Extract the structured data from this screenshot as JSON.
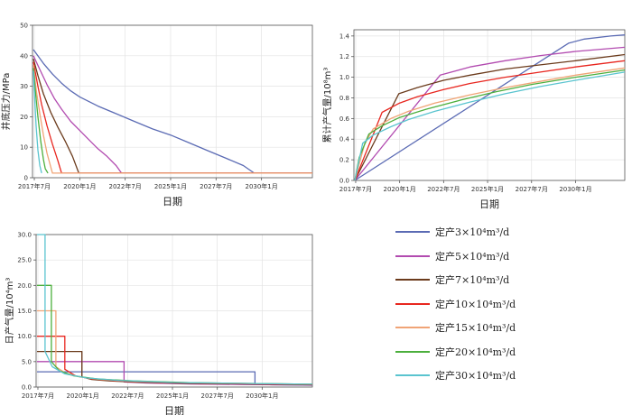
{
  "legend": [
    {
      "label": "定产3×10⁴m³/d",
      "color": "#5b6bb4"
    },
    {
      "label": "定产5×10⁴m³/d",
      "color": "#b24bb0"
    },
    {
      "label": "定产7×10⁴m³/d",
      "color": "#6b3b1c"
    },
    {
      "label": "定产10×10⁴m³/d",
      "color": "#e8261f"
    },
    {
      "label": "定产15×10⁴m³/d",
      "color": "#f0a476"
    },
    {
      "label": "定产20×10⁴m³/d",
      "color": "#4caf3d"
    },
    {
      "label": "定产30×10⁴m³/d",
      "color": "#5ac4cf"
    }
  ],
  "chart_data": [
    {
      "id": "pressure",
      "type": "line",
      "title": "",
      "ylabel": "井底压力/MPa",
      "xlabel": "日期",
      "xlim": [
        2017.4,
        2032.8
      ],
      "ylim": [
        0,
        50
      ],
      "yticks": [
        0,
        10,
        20,
        30,
        40,
        50
      ],
      "xticks": [
        {
          "v": 2017.5,
          "label": "2017年7月"
        },
        {
          "v": 2020.0,
          "label": "2020年1月"
        },
        {
          "v": 2022.5,
          "label": "2022年7月"
        },
        {
          "v": 2025.0,
          "label": "2025年1月"
        },
        {
          "v": 2027.5,
          "label": "2027年7月"
        },
        {
          "v": 2030.0,
          "label": "2030年1月"
        }
      ],
      "series": [
        {
          "name": "3",
          "color": "#5b6bb4",
          "x": [
            2017.45,
            2018.0,
            2018.5,
            2019.0,
            2019.5,
            2020.0,
            2021.0,
            2022.0,
            2023.0,
            2024.0,
            2025.0,
            2026.0,
            2027.0,
            2028.0,
            2029.0,
            2029.6,
            2032.8
          ],
          "y": [
            42,
            37.5,
            34,
            31,
            28.5,
            26.5,
            23.5,
            21,
            18.5,
            16,
            14,
            11.5,
            9,
            6.5,
            4,
            1.5,
            1.5
          ]
        },
        {
          "name": "5",
          "color": "#b24bb0",
          "x": [
            2017.45,
            2017.8,
            2018.2,
            2018.6,
            2019.0,
            2019.5,
            2020.0,
            2020.5,
            2021.0,
            2021.5,
            2022.0,
            2022.3,
            2032.8
          ],
          "y": [
            40,
            35.5,
            30.5,
            26,
            22.5,
            18.5,
            15.5,
            12.5,
            9.5,
            7,
            4,
            1.5,
            1.5
          ]
        },
        {
          "name": "7",
          "color": "#6b3b1c",
          "x": [
            2017.45,
            2017.7,
            2018.0,
            2018.4,
            2018.8,
            2019.2,
            2019.6,
            2019.95,
            2032.8
          ],
          "y": [
            39,
            33.5,
            27.5,
            21.5,
            16.5,
            12,
            7,
            1.5,
            1.5
          ]
        },
        {
          "name": "10",
          "color": "#e8261f",
          "x": [
            2017.45,
            2017.7,
            2017.9,
            2018.2,
            2018.5,
            2018.8,
            2019.0,
            2032.8
          ],
          "y": [
            38,
            30,
            24,
            17,
            11,
            5.5,
            1.5,
            1.5
          ]
        },
        {
          "name": "15",
          "color": "#f0a476",
          "x": [
            2017.45,
            2017.6,
            2017.8,
            2018.0,
            2018.2,
            2018.5,
            2032.8
          ],
          "y": [
            37,
            29,
            21,
            14,
            8,
            1.5,
            1.5
          ]
        },
        {
          "name": "20",
          "color": "#4caf3d",
          "x": [
            2017.45,
            2017.55,
            2017.7,
            2017.85,
            2018.0,
            2018.1,
            2018.25
          ],
          "y": [
            36,
            29,
            20,
            12,
            6,
            3,
            1.5
          ]
        },
        {
          "name": "30",
          "color": "#5ac4cf",
          "x": [
            2017.45,
            2017.52,
            2017.6,
            2017.7,
            2017.8,
            2017.9
          ],
          "y": [
            35,
            26,
            17,
            9,
            4,
            1.5
          ]
        }
      ]
    },
    {
      "id": "cumulative",
      "type": "line",
      "title": "",
      "ylabel": "累计产气量/10⁸m³",
      "xlabel": "日期",
      "xlim": [
        2017.4,
        2032.8
      ],
      "ylim": [
        0,
        1.46
      ],
      "yticks": [
        0,
        0.2,
        0.4,
        0.6,
        0.8,
        1.0,
        1.2,
        1.4
      ],
      "ytick_labels": [
        "0.0",
        "0.2",
        "0.4",
        "0.6",
        "0.8",
        "1.0",
        "1.2",
        "1.4"
      ],
      "xticks": [
        {
          "v": 2017.5,
          "label": "2017年7月"
        },
        {
          "v": 2020.0,
          "label": "2020年1月"
        },
        {
          "v": 2022.5,
          "label": "2022年7月"
        },
        {
          "v": 2025.0,
          "label": "2025年1月"
        },
        {
          "v": 2027.5,
          "label": "2027年7月"
        },
        {
          "v": 2030.0,
          "label": "2030年1月"
        }
      ],
      "series": [
        {
          "name": "3",
          "color": "#5b6bb4",
          "x": [
            2017.45,
            2029.6,
            2030.5,
            2032.0,
            2032.8
          ],
          "y": [
            0,
            1.33,
            1.37,
            1.4,
            1.41
          ]
        },
        {
          "name": "5",
          "color": "#b24bb0",
          "x": [
            2017.45,
            2022.3,
            2024.0,
            2026.0,
            2028.0,
            2030.0,
            2032.8
          ],
          "y": [
            0,
            1.02,
            1.1,
            1.16,
            1.21,
            1.25,
            1.29
          ]
        },
        {
          "name": "7",
          "color": "#6b3b1c",
          "x": [
            2017.45,
            2019.95,
            2021.0,
            2022.5,
            2024.0,
            2026.0,
            2028.0,
            2030.0,
            2032.8
          ],
          "y": [
            0,
            0.84,
            0.9,
            0.97,
            1.02,
            1.08,
            1.12,
            1.16,
            1.22
          ]
        },
        {
          "name": "10",
          "color": "#e8261f",
          "x": [
            2017.45,
            2019.0,
            2020.0,
            2021.0,
            2022.5,
            2024.0,
            2026.0,
            2028.0,
            2030.0,
            2032.8
          ],
          "y": [
            0,
            0.66,
            0.75,
            0.81,
            0.88,
            0.94,
            1.0,
            1.05,
            1.1,
            1.16
          ]
        },
        {
          "name": "15",
          "color": "#f0a476",
          "x": [
            2017.45,
            2018.0,
            2018.5,
            2019.5,
            2020.5,
            2022.0,
            2024.0,
            2026.0,
            2028.0,
            2030.0,
            2032.8
          ],
          "y": [
            0,
            0.35,
            0.5,
            0.6,
            0.67,
            0.75,
            0.83,
            0.9,
            0.96,
            1.02,
            1.09
          ]
        },
        {
          "name": "20",
          "color": "#4caf3d",
          "x": [
            2017.45,
            2017.7,
            2018.25,
            2019.0,
            2020.0,
            2021.5,
            2023.5,
            2025.5,
            2027.5,
            2030.0,
            2032.8
          ],
          "y": [
            0,
            0.22,
            0.45,
            0.53,
            0.61,
            0.69,
            0.78,
            0.86,
            0.93,
            1.0,
            1.07
          ]
        },
        {
          "name": "30",
          "color": "#5ac4cf",
          "x": [
            2017.45,
            2017.9,
            2018.5,
            2019.5,
            2020.5,
            2022.0,
            2024.0,
            2026.0,
            2028.0,
            2030.0,
            2032.8
          ],
          "y": [
            0,
            0.36,
            0.44,
            0.52,
            0.59,
            0.67,
            0.76,
            0.84,
            0.91,
            0.97,
            1.05
          ]
        }
      ]
    },
    {
      "id": "daily",
      "type": "line",
      "title": "",
      "ylabel": "日产气量/10⁴m³",
      "xlabel": "日期",
      "xlim": [
        2017.4,
        2032.8
      ],
      "ylim": [
        0,
        30
      ],
      "yticks": [
        0,
        5,
        10,
        15,
        20,
        25,
        30
      ],
      "ytick_labels": [
        "0.0",
        "5.0",
        "10.0",
        "15.0",
        "20.0",
        "25.0",
        "30.0"
      ],
      "xticks": [
        {
          "v": 2017.5,
          "label": "2017年7月"
        },
        {
          "v": 2020.0,
          "label": "2020年1月"
        },
        {
          "v": 2022.5,
          "label": "2022年7月"
        },
        {
          "v": 2025.0,
          "label": "2025年1月"
        },
        {
          "v": 2027.5,
          "label": "2027年7月"
        },
        {
          "v": 2030.0,
          "label": "2030年1月"
        }
      ],
      "series": [
        {
          "name": "3",
          "color": "#5b6bb4",
          "x": [
            2017.45,
            2029.6,
            2029.6,
            2030.5,
            2032.8
          ],
          "y": [
            3,
            3,
            0.7,
            0.45,
            0.35
          ]
        },
        {
          "name": "5",
          "color": "#b24bb0",
          "x": [
            2017.45,
            2022.3,
            2022.3,
            2023.5,
            2026.0,
            2029.0,
            2032.8
          ],
          "y": [
            5,
            5,
            1.0,
            0.8,
            0.6,
            0.5,
            0.4
          ]
        },
        {
          "name": "7",
          "color": "#6b3b1c",
          "x": [
            2017.45,
            2019.95,
            2019.95,
            2020.5,
            2021.5,
            2023.0,
            2025.5,
            2029.0,
            2032.8
          ],
          "y": [
            7,
            7,
            2.0,
            1.5,
            1.2,
            0.95,
            0.75,
            0.6,
            0.45
          ]
        },
        {
          "name": "10",
          "color": "#e8261f",
          "x": [
            2017.45,
            2019.0,
            2019.0,
            2019.6,
            2020.5,
            2022.0,
            2024.5,
            2028.0,
            2032.8
          ],
          "y": [
            10,
            10,
            3.5,
            2.2,
            1.6,
            1.2,
            0.9,
            0.7,
            0.5
          ]
        },
        {
          "name": "15",
          "color": "#f0a476",
          "x": [
            2017.45,
            2018.5,
            2018.5,
            2019.0,
            2019.8,
            2021.0,
            2023.0,
            2026.0,
            2032.8
          ],
          "y": [
            15,
            15,
            4.0,
            2.8,
            2.0,
            1.5,
            1.1,
            0.85,
            0.55
          ]
        },
        {
          "name": "20",
          "color": "#4caf3d",
          "x": [
            2017.45,
            2018.25,
            2018.25,
            2018.7,
            2019.5,
            2020.8,
            2022.8,
            2026.0,
            2032.8
          ],
          "y": [
            20,
            20,
            5.0,
            3.2,
            2.2,
            1.6,
            1.2,
            0.85,
            0.55
          ]
        },
        {
          "name": "30",
          "color": "#5ac4cf",
          "x": [
            2017.45,
            2017.9,
            2017.9,
            2018.3,
            2019.0,
            2020.2,
            2022.0,
            2025.0,
            2032.8
          ],
          "y": [
            30,
            30,
            7.0,
            4.0,
            2.6,
            1.8,
            1.3,
            0.9,
            0.55
          ]
        }
      ]
    }
  ]
}
